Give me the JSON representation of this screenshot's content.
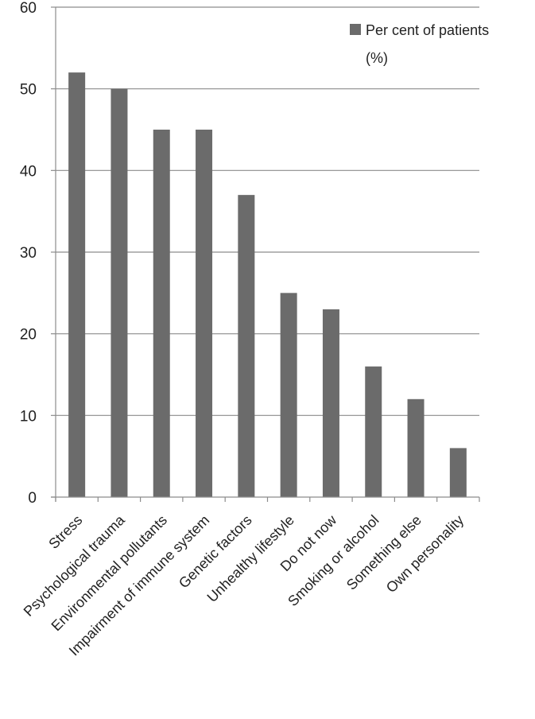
{
  "chart_data": {
    "type": "bar",
    "title": "",
    "xlabel": "",
    "ylabel": "",
    "ylim": [
      0,
      60
    ],
    "yticks": [
      0,
      10,
      20,
      30,
      40,
      50,
      60
    ],
    "grid": true,
    "legend_position": "top-right",
    "categories": [
      "Stress",
      "Psychological trauma",
      "Environmental pollutants",
      "Impairment of immune system",
      "Genetic factors",
      "Unhealthy lifestyle",
      "Do not now",
      "Smoking or alcohol",
      "Something else",
      "Own personality"
    ],
    "series": [
      {
        "name": "Per cent of patients (%)",
        "values": [
          52,
          50,
          45,
          45,
          37,
          25,
          23,
          16,
          12,
          6
        ]
      }
    ]
  },
  "legend": {
    "line1": "Per cent of patients",
    "line2": "(%)"
  },
  "colors": {
    "bar": "#6b6b6b",
    "grid": "#8c8c8c",
    "axis": "#8c8c8c",
    "text": "#222222"
  }
}
